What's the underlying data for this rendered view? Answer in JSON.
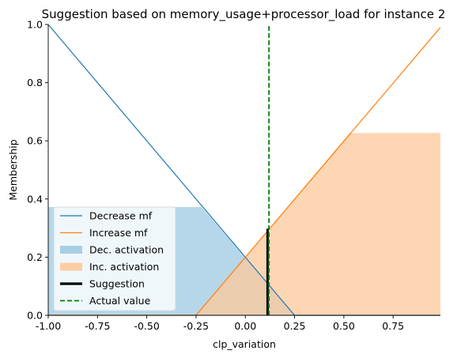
{
  "chart_data": {
    "type": "line",
    "title": "Suggestion based on memory_usage+processor_load for instance 2",
    "xlabel": "clp_variation",
    "ylabel": "Membership",
    "xlim": [
      -1.0,
      0.99
    ],
    "ylim": [
      0.0,
      1.0
    ],
    "xticks": [
      "-1.00",
      "-0.75",
      "-0.50",
      "-0.25",
      "0.00",
      "0.25",
      "0.50",
      "0.75"
    ],
    "xtick_values": [
      -1.0,
      -0.75,
      -0.5,
      -0.25,
      0.0,
      0.25,
      0.5,
      0.75
    ],
    "yticks": [
      "0.0",
      "0.2",
      "0.4",
      "0.6",
      "0.8",
      "1.0"
    ],
    "ytick_values": [
      0.0,
      0.2,
      0.4,
      0.6,
      0.8,
      1.0
    ],
    "grid": false,
    "legend_position": "lower-left",
    "series": [
      {
        "name": "Decrease mf",
        "kind": "line",
        "color": "#1f77b4",
        "x": [
          -1.0,
          0.25,
          0.99
        ],
        "y": [
          1.0,
          0.0,
          0.0
        ]
      },
      {
        "name": "Increase mf",
        "kind": "line",
        "color": "#ff7f0e",
        "x": [
          -1.0,
          -0.25,
          0.99
        ],
        "y": [
          0.0,
          0.0,
          0.99
        ]
      },
      {
        "name": "Dec. activation",
        "kind": "area",
        "color": "#9ecae1",
        "x": [
          -1.0,
          -0.2225,
          0.25,
          0.99
        ],
        "y": [
          0.3722,
          0.3722,
          0.0,
          0.0
        ]
      },
      {
        "name": "Inc. activation",
        "kind": "area",
        "color": "#fdc89b",
        "x": [
          -1.0,
          -0.25,
          0.5289,
          0.99
        ],
        "y": [
          0.0,
          0.0,
          0.6271,
          0.6271
        ]
      },
      {
        "name": "Suggestion",
        "kind": "vline",
        "color": "#000000",
        "x": 0.113,
        "y": [
          0.0,
          0.298
        ]
      },
      {
        "name": "Actual value",
        "kind": "vline-dashed",
        "color": "#008000",
        "x": 0.12,
        "y": [
          0.0,
          1.0
        ]
      }
    ]
  }
}
